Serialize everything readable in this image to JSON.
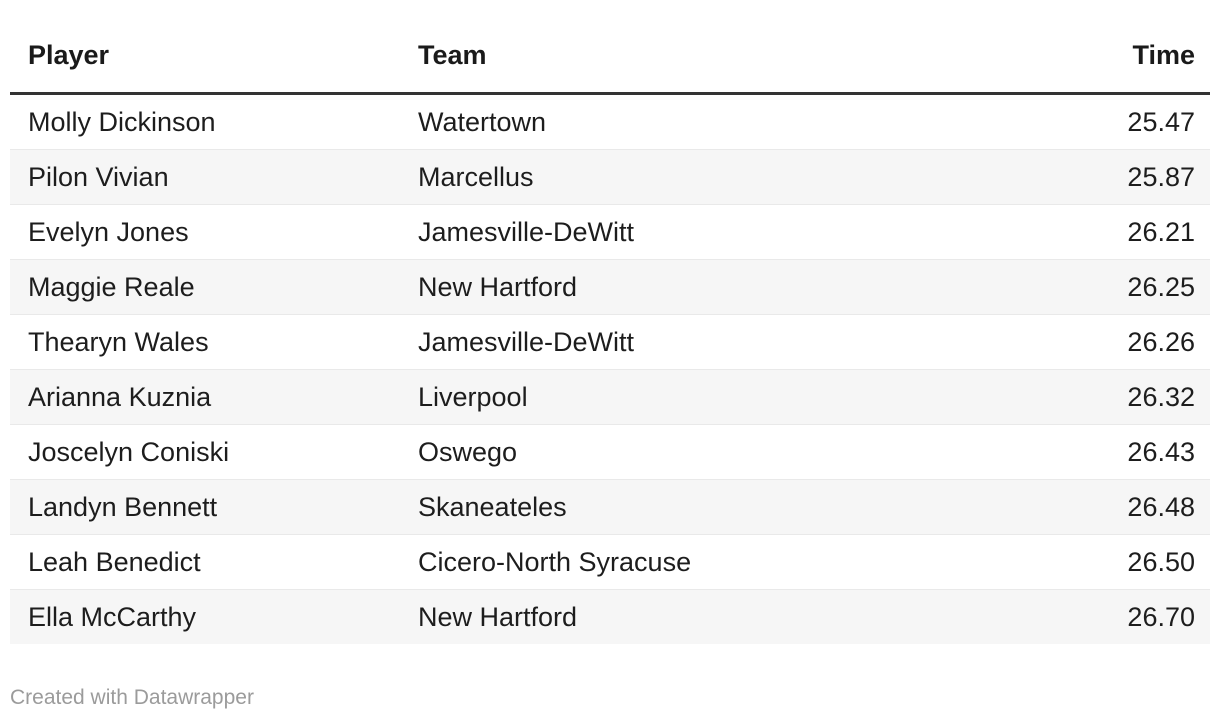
{
  "chart_data": {
    "type": "table",
    "title": "",
    "columns": [
      "Player",
      "Team",
      "Time"
    ],
    "column_align": [
      "left",
      "left",
      "right"
    ],
    "rows": [
      {
        "player": "Molly Dickinson",
        "team": "Watertown",
        "time": "25.47"
      },
      {
        "player": "Pilon Vivian",
        "team": "Marcellus",
        "time": "25.87"
      },
      {
        "player": "Evelyn Jones",
        "team": "Jamesville-DeWitt",
        "time": "26.21"
      },
      {
        "player": "Maggie Reale",
        "team": "New Hartford",
        "time": "26.25"
      },
      {
        "player": "Thearyn Wales",
        "team": "Jamesville-DeWitt",
        "time": "26.26"
      },
      {
        "player": "Arianna Kuznia",
        "team": "Liverpool",
        "time": "26.32"
      },
      {
        "player": "Joscelyn Coniski",
        "team": "Oswego",
        "time": "26.43"
      },
      {
        "player": "Landyn Bennett",
        "team": "Skaneateles",
        "time": "26.48"
      },
      {
        "player": "Leah Benedict",
        "team": "Cicero-North Syracuse",
        "time": "26.50"
      },
      {
        "player": "Ella McCarthy",
        "team": "New Hartford",
        "time": "26.70"
      }
    ],
    "layout_hints": {
      "zebra_striping": true,
      "header_rule": true
    }
  },
  "footer": {
    "credit": "Created with Datawrapper"
  },
  "colors": {
    "background": "#ffffff",
    "text": "#1d1d1d",
    "header_text": "#1a1a1a",
    "header_rule": "#333333",
    "row_stripe": "#f6f6f6",
    "row_divider": "#e9e9e9",
    "credit_text": "#9b9b9b"
  }
}
